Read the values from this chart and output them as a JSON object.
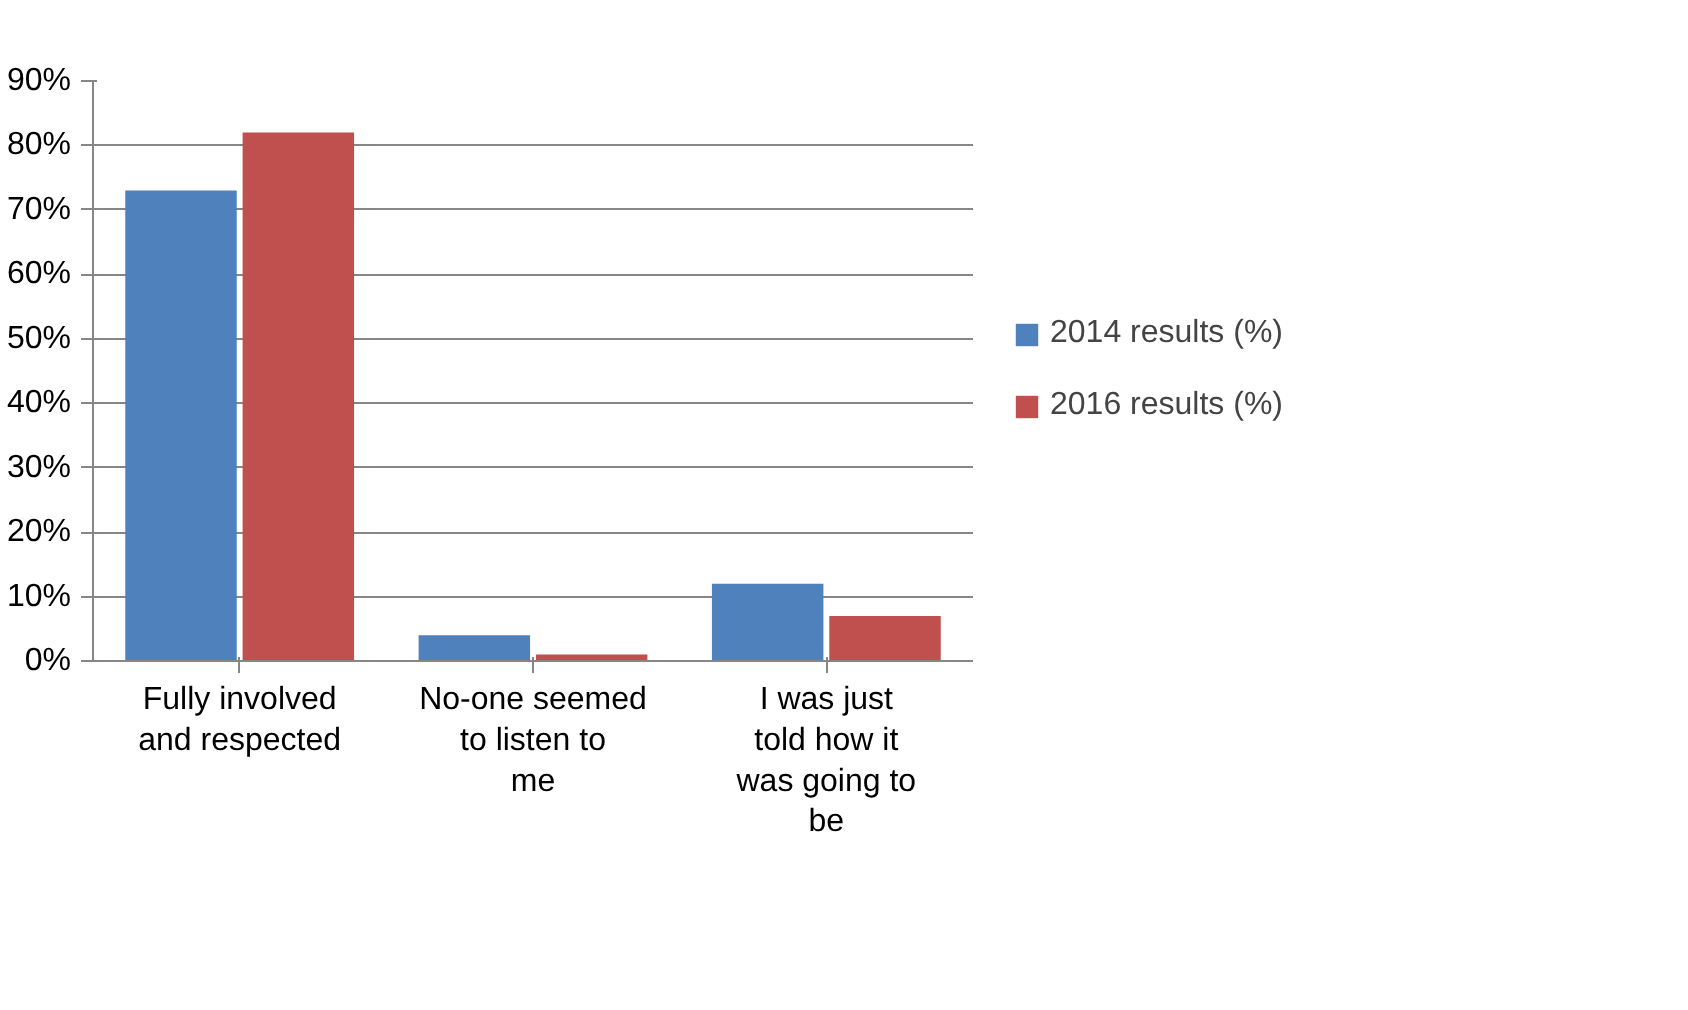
{
  "chart_data": {
    "type": "bar",
    "categories": [
      "Fully involved and respected",
      "No-one seemed to listen to me",
      "I was just told how it was going to be"
    ],
    "series": [
      {
        "name": "2014 results (%)",
        "color": "#4f81bd",
        "values": [
          73,
          4,
          12
        ]
      },
      {
        "name": "2016 results (%)",
        "color": "#c0504d",
        "values": [
          82,
          1,
          7
        ]
      }
    ],
    "ylim": [
      0,
      90
    ],
    "yticks": [
      {
        "value": 0,
        "label": "0%"
      },
      {
        "value": 10,
        "label": "10%"
      },
      {
        "value": 20,
        "label": "20%"
      },
      {
        "value": 30,
        "label": "30%"
      },
      {
        "value": 40,
        "label": "40%"
      },
      {
        "value": 50,
        "label": "50%"
      },
      {
        "value": 60,
        "label": "60%"
      },
      {
        "value": 70,
        "label": "70%"
      },
      {
        "value": 80,
        "label": "80%"
      },
      {
        "value": 90,
        "label": "90%"
      }
    ],
    "grid": "y",
    "legend": "right"
  }
}
